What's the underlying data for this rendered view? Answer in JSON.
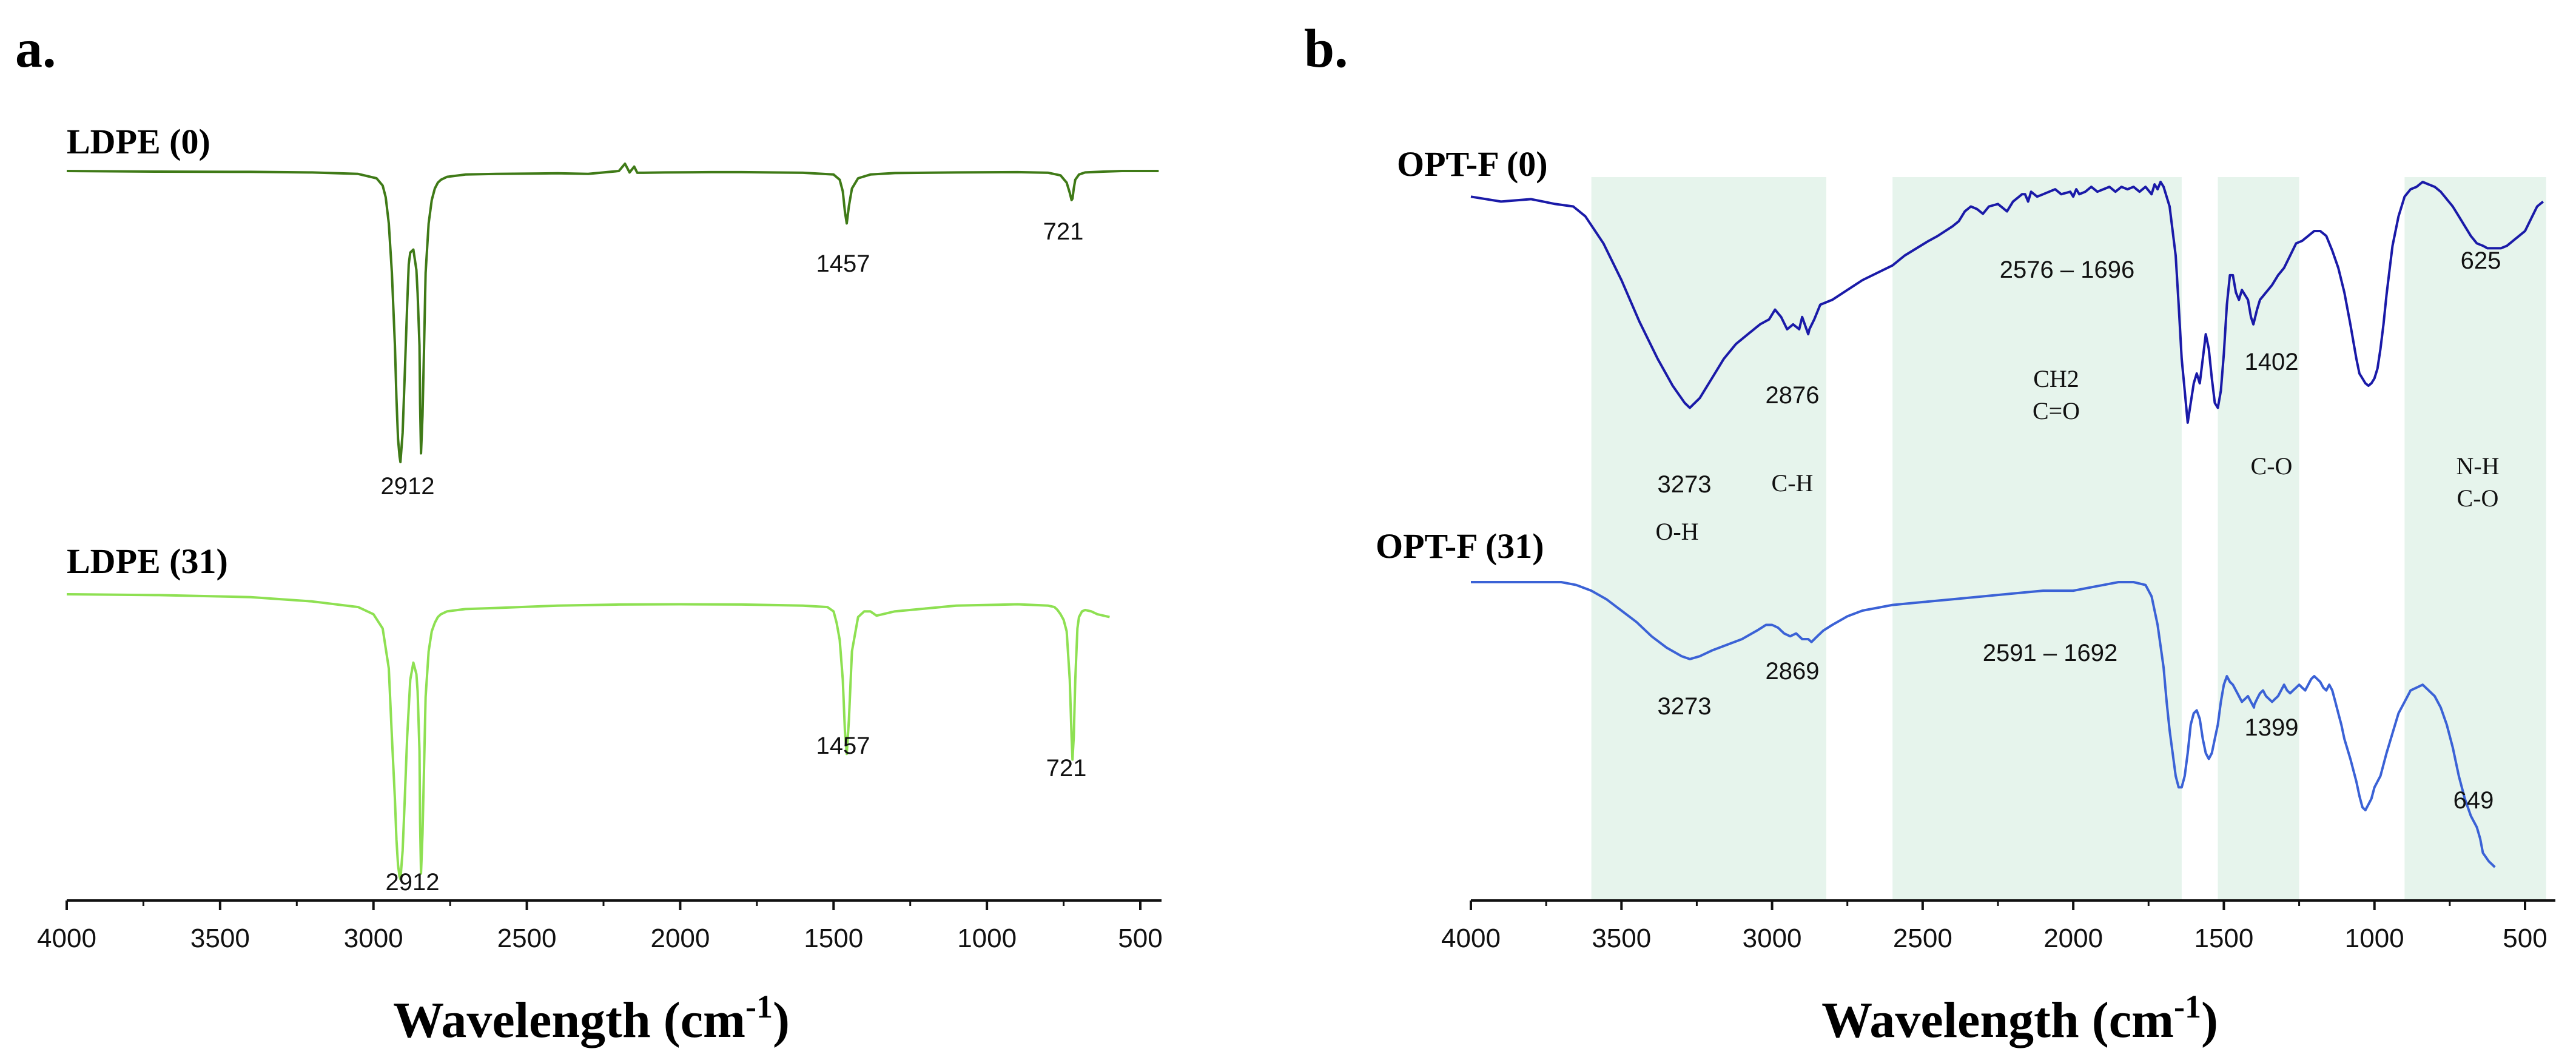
{
  "chart_data": [
    {
      "panel": "a.",
      "type": "line",
      "xlabel": "Wavelength (cm",
      "xlabel_sup": "-1",
      "xlabel_close": ")",
      "xlim": [
        4000,
        400
      ],
      "xticks": [
        4000,
        3500,
        3000,
        2500,
        2000,
        1500,
        1000,
        500
      ],
      "series": [
        {
          "name": "LDPE (0)",
          "color": "#3f7a17",
          "x": [
            4000,
            3700,
            3400,
            3200,
            3050,
            2990,
            2970,
            2960,
            2950,
            2940,
            2930,
            2925,
            2920,
            2915,
            2912,
            2905,
            2898,
            2890,
            2885,
            2880,
            2870,
            2860,
            2856,
            2850,
            2848,
            2845,
            2840,
            2835,
            2830,
            2820,
            2810,
            2800,
            2790,
            2780,
            2760,
            2700,
            2600,
            2400,
            2300,
            2200,
            2180,
            2165,
            2150,
            2140,
            2120,
            2050,
            1900,
            1800,
            1600,
            1500,
            1480,
            1470,
            1463,
            1457,
            1450,
            1440,
            1420,
            1380,
            1300,
            1100,
            900,
            800,
            760,
            740,
            730,
            724,
            721,
            717,
            712,
            700,
            680,
            620,
            560,
            500,
            440
          ],
          "y": [
            0,
            0.002,
            0.003,
            0.005,
            0.01,
            0.025,
            0.05,
            0.09,
            0.18,
            0.35,
            0.6,
            0.78,
            0.92,
            0.98,
            1.0,
            0.9,
            0.7,
            0.46,
            0.32,
            0.28,
            0.27,
            0.34,
            0.42,
            0.6,
            0.8,
            0.97,
            0.84,
            0.6,
            0.35,
            0.18,
            0.1,
            0.06,
            0.04,
            0.03,
            0.02,
            0.012,
            0.01,
            0.008,
            0.01,
            0.0,
            -0.025,
            0.005,
            -0.015,
            0.006,
            0.006,
            0.005,
            0.004,
            0.004,
            0.006,
            0.012,
            0.03,
            0.07,
            0.14,
            0.18,
            0.12,
            0.06,
            0.025,
            0.012,
            0.007,
            0.005,
            0.004,
            0.006,
            0.015,
            0.04,
            0.075,
            0.1,
            0.095,
            0.06,
            0.03,
            0.012,
            0.005,
            0.002,
            0.0,
            0.0,
            0.0
          ]
        },
        {
          "name": "LDPE (31)",
          "color": "#8ee052",
          "x": [
            4000,
            3700,
            3400,
            3200,
            3050,
            3000,
            2970,
            2950,
            2940,
            2930,
            2925,
            2920,
            2915,
            2912,
            2905,
            2898,
            2890,
            2880,
            2870,
            2860,
            2856,
            2850,
            2848,
            2845,
            2840,
            2835,
            2830,
            2820,
            2810,
            2800,
            2790,
            2780,
            2760,
            2700,
            2600,
            2400,
            2200,
            2000,
            1800,
            1600,
            1520,
            1500,
            1490,
            1480,
            1470,
            1463,
            1457,
            1450,
            1440,
            1420,
            1400,
            1380,
            1360,
            1300,
            1100,
            900,
            800,
            780,
            770,
            760,
            750,
            740,
            730,
            724,
            721,
            717,
            712,
            705,
            700,
            690,
            680,
            660,
            640,
            600
          ],
          "y": [
            0,
            0.003,
            0.01,
            0.025,
            0.045,
            0.07,
            0.12,
            0.26,
            0.5,
            0.72,
            0.86,
            0.95,
            0.99,
            1.0,
            0.9,
            0.72,
            0.5,
            0.3,
            0.24,
            0.28,
            0.34,
            0.55,
            0.8,
            0.98,
            0.84,
            0.6,
            0.36,
            0.2,
            0.13,
            0.1,
            0.08,
            0.07,
            0.06,
            0.052,
            0.048,
            0.04,
            0.036,
            0.035,
            0.036,
            0.04,
            0.045,
            0.06,
            0.1,
            0.16,
            0.3,
            0.48,
            0.56,
            0.44,
            0.2,
            0.08,
            0.06,
            0.06,
            0.075,
            0.06,
            0.04,
            0.035,
            0.04,
            0.045,
            0.055,
            0.07,
            0.09,
            0.13,
            0.3,
            0.5,
            0.58,
            0.5,
            0.3,
            0.12,
            0.08,
            0.06,
            0.055,
            0.06,
            0.07,
            0.08
          ]
        }
      ],
      "annotations": [
        {
          "series": 0,
          "text": "2912",
          "x": 2912
        },
        {
          "series": 0,
          "text": "1457",
          "x": 1457
        },
        {
          "series": 0,
          "text": "721",
          "x": 721
        },
        {
          "series": 1,
          "text": "2912",
          "x": 2912
        },
        {
          "series": 1,
          "text": "1457",
          "x": 1457
        },
        {
          "series": 1,
          "text": "721",
          "x": 721
        }
      ]
    },
    {
      "panel": "b.",
      "type": "line",
      "xlabel": "Wavelength (cm",
      "xlabel_sup": "-1",
      "xlabel_close": ")",
      "xlim": [
        4000,
        430
      ],
      "xticks": [
        4000,
        3500,
        3000,
        2500,
        2000,
        1500,
        1000,
        500
      ],
      "bands": [
        [
          3600,
          2820
        ],
        [
          2600,
          1640
        ],
        [
          1520,
          1250
        ],
        [
          900,
          430
        ]
      ],
      "band_labels": [
        {
          "lines": [
            "O-H"
          ],
          "x": 3270
        },
        {
          "lines": [
            "C-H"
          ],
          "x": 3080
        },
        {
          "lines": [
            "CH2",
            "C=O"
          ],
          "x": 2130
        },
        {
          "lines": [
            "C-O"
          ],
          "x": 1380
        },
        {
          "lines": [
            "N-H",
            "C-O"
          ],
          "x": 680
        }
      ],
      "series": [
        {
          "name": "OPT-F (0)",
          "color": "#1a1aa8",
          "x": [
            4000,
            3900,
            3800,
            3720,
            3660,
            3620,
            3560,
            3500,
            3440,
            3380,
            3330,
            3290,
            3273,
            3240,
            3200,
            3160,
            3120,
            3080,
            3040,
            3010,
            2990,
            2970,
            2950,
            2930,
            2910,
            2900,
            2880,
            2876,
            2860,
            2840,
            2800,
            2700,
            2600,
            2560,
            2480,
            2450,
            2400,
            2380,
            2360,
            2340,
            2320,
            2300,
            2280,
            2250,
            2220,
            2200,
            2180,
            2170,
            2160,
            2150,
            2140,
            2120,
            2100,
            2080,
            2060,
            2040,
            2010,
            2000,
            1990,
            1980,
            1960,
            1940,
            1920,
            1900,
            1880,
            1860,
            1840,
            1820,
            1800,
            1780,
            1760,
            1740,
            1730,
            1720,
            1710,
            1700,
            1680,
            1660,
            1650,
            1640,
            1630,
            1620,
            1610,
            1600,
            1590,
            1580,
            1570,
            1560,
            1550,
            1540,
            1530,
            1520,
            1510,
            1500,
            1490,
            1480,
            1470,
            1460,
            1450,
            1440,
            1420,
            1410,
            1402,
            1390,
            1380,
            1360,
            1340,
            1320,
            1300,
            1280,
            1260,
            1240,
            1220,
            1200,
            1180,
            1160,
            1140,
            1120,
            1100,
            1080,
            1060,
            1050,
            1040,
            1030,
            1020,
            1010,
            1000,
            990,
            980,
            970,
            960,
            950,
            940,
            920,
            900,
            880,
            860,
            840,
            820,
            800,
            780,
            760,
            740,
            720,
            700,
            680,
            660,
            640,
            625,
            600,
            580,
            560,
            540,
            520,
            500,
            480,
            460,
            440
          ],
          "y": [
            0.06,
            0.08,
            0.07,
            0.09,
            0.1,
            0.14,
            0.25,
            0.4,
            0.57,
            0.72,
            0.83,
            0.9,
            0.92,
            0.88,
            0.8,
            0.72,
            0.66,
            0.62,
            0.58,
            0.56,
            0.52,
            0.55,
            0.6,
            0.58,
            0.6,
            0.55,
            0.62,
            0.6,
            0.56,
            0.5,
            0.48,
            0.4,
            0.34,
            0.3,
            0.24,
            0.22,
            0.18,
            0.16,
            0.12,
            0.1,
            0.11,
            0.13,
            0.1,
            0.09,
            0.12,
            0.08,
            0.06,
            0.05,
            0.05,
            0.08,
            0.04,
            0.06,
            0.05,
            0.04,
            0.03,
            0.05,
            0.04,
            0.06,
            0.03,
            0.05,
            0.04,
            0.02,
            0.04,
            0.03,
            0.02,
            0.04,
            0.02,
            0.03,
            0.02,
            0.04,
            0.02,
            0.05,
            0.01,
            0.03,
            0.0,
            0.02,
            0.1,
            0.3,
            0.5,
            0.72,
            0.85,
            0.98,
            0.9,
            0.82,
            0.78,
            0.82,
            0.72,
            0.62,
            0.68,
            0.8,
            0.9,
            0.92,
            0.85,
            0.7,
            0.5,
            0.38,
            0.38,
            0.45,
            0.48,
            0.44,
            0.48,
            0.55,
            0.58,
            0.52,
            0.48,
            0.45,
            0.42,
            0.38,
            0.35,
            0.3,
            0.25,
            0.24,
            0.22,
            0.2,
            0.2,
            0.22,
            0.28,
            0.35,
            0.45,
            0.58,
            0.72,
            0.78,
            0.8,
            0.82,
            0.83,
            0.82,
            0.8,
            0.76,
            0.68,
            0.58,
            0.46,
            0.36,
            0.26,
            0.14,
            0.06,
            0.03,
            0.02,
            0.0,
            0.01,
            0.02,
            0.04,
            0.07,
            0.1,
            0.14,
            0.18,
            0.22,
            0.25,
            0.26,
            0.27,
            0.27,
            0.27,
            0.26,
            0.24,
            0.22,
            0.2,
            0.15,
            0.1,
            0.08
          ]
        },
        {
          "name": "OPT-F (31)",
          "color": "#3b62d6",
          "x": [
            4000,
            3900,
            3800,
            3700,
            3650,
            3600,
            3550,
            3500,
            3450,
            3400,
            3350,
            3300,
            3273,
            3240,
            3200,
            3150,
            3100,
            3050,
            3020,
            3000,
            2980,
            2960,
            2940,
            2920,
            2900,
            2880,
            2869,
            2850,
            2830,
            2800,
            2750,
            2700,
            2600,
            2500,
            2400,
            2300,
            2200,
            2100,
            2000,
            1950,
            1900,
            1850,
            1800,
            1760,
            1740,
            1720,
            1700,
            1690,
            1680,
            1670,
            1660,
            1650,
            1640,
            1630,
            1620,
            1610,
            1600,
            1590,
            1580,
            1570,
            1560,
            1550,
            1540,
            1530,
            1520,
            1510,
            1500,
            1490,
            1480,
            1470,
            1460,
            1450,
            1440,
            1430,
            1420,
            1410,
            1400,
            1399,
            1390,
            1380,
            1370,
            1360,
            1350,
            1340,
            1330,
            1320,
            1310,
            1300,
            1290,
            1280,
            1270,
            1260,
            1250,
            1240,
            1230,
            1220,
            1210,
            1200,
            1190,
            1180,
            1170,
            1160,
            1150,
            1140,
            1130,
            1120,
            1110,
            1100,
            1080,
            1060,
            1050,
            1040,
            1030,
            1020,
            1010,
            1000,
            980,
            960,
            940,
            920,
            900,
            880,
            860,
            840,
            820,
            800,
            780,
            760,
            740,
            720,
            700,
            680,
            660,
            649,
            640,
            620,
            600
          ],
          "y": [
            0.0,
            0.0,
            0.0,
            0.0,
            0.01,
            0.03,
            0.06,
            0.1,
            0.14,
            0.19,
            0.23,
            0.26,
            0.27,
            0.26,
            0.24,
            0.22,
            0.2,
            0.17,
            0.15,
            0.15,
            0.16,
            0.18,
            0.19,
            0.18,
            0.2,
            0.2,
            0.21,
            0.19,
            0.17,
            0.15,
            0.12,
            0.1,
            0.08,
            0.07,
            0.06,
            0.05,
            0.04,
            0.03,
            0.03,
            0.02,
            0.01,
            0.0,
            0.0,
            0.01,
            0.05,
            0.15,
            0.3,
            0.42,
            0.52,
            0.6,
            0.68,
            0.72,
            0.72,
            0.68,
            0.6,
            0.5,
            0.46,
            0.45,
            0.48,
            0.55,
            0.6,
            0.62,
            0.6,
            0.55,
            0.5,
            0.42,
            0.36,
            0.33,
            0.35,
            0.36,
            0.38,
            0.4,
            0.42,
            0.41,
            0.4,
            0.42,
            0.44,
            0.43,
            0.41,
            0.39,
            0.38,
            0.4,
            0.41,
            0.42,
            0.41,
            0.4,
            0.38,
            0.36,
            0.38,
            0.39,
            0.38,
            0.37,
            0.36,
            0.37,
            0.38,
            0.36,
            0.34,
            0.33,
            0.34,
            0.35,
            0.37,
            0.38,
            0.36,
            0.38,
            0.42,
            0.46,
            0.5,
            0.55,
            0.62,
            0.7,
            0.75,
            0.79,
            0.8,
            0.78,
            0.76,
            0.72,
            0.68,
            0.6,
            0.53,
            0.46,
            0.42,
            0.38,
            0.37,
            0.36,
            0.38,
            0.4,
            0.44,
            0.5,
            0.58,
            0.68,
            0.76,
            0.82,
            0.86,
            0.9,
            0.95,
            0.98,
            1.0
          ]
        }
      ],
      "annotations": [
        {
          "series": 0,
          "text": "3273",
          "x": 3273
        },
        {
          "series": 0,
          "text": "2876",
          "x": 2876
        },
        {
          "series": 0,
          "text": "2576 – 1696",
          "x": 2136
        },
        {
          "series": 0,
          "text": "1402",
          "x": 1402
        },
        {
          "series": 0,
          "text": "625",
          "x": 625
        },
        {
          "series": 1,
          "text": "3273",
          "x": 3273
        },
        {
          "series": 1,
          "text": "2869",
          "x": 2869
        },
        {
          "series": 1,
          "text": "2591 – 1692",
          "x": 2141
        },
        {
          "series": 1,
          "text": "1399",
          "x": 1399
        },
        {
          "series": 1,
          "text": "649",
          "x": 649
        }
      ]
    }
  ]
}
